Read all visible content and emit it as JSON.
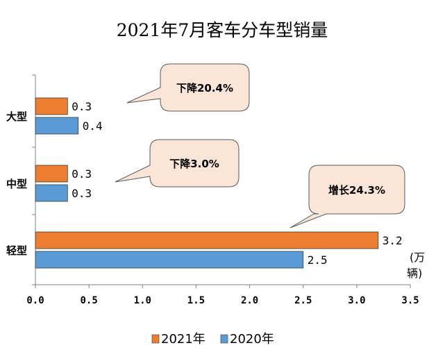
{
  "chart_data": {
    "type": "bar",
    "orientation": "horizontal",
    "title": "2021年7月客车分车型销量",
    "categories": [
      "大型",
      "中型",
      "轻型"
    ],
    "series": [
      {
        "name": "2021年",
        "color": "#ED7D31",
        "values": [
          0.3,
          0.3,
          3.2
        ]
      },
      {
        "name": "2020年",
        "color": "#5B9BD5",
        "values": [
          0.4,
          0.3,
          2.5
        ]
      }
    ],
    "xlim": [
      0,
      3.5
    ],
    "xticks": [
      "0.0",
      "0.5",
      "1.0",
      "1.5",
      "2.0",
      "2.5",
      "3.0",
      "3.5"
    ],
    "unit_label": [
      "(万",
      "辆)"
    ],
    "annotations": [
      {
        "category": "大型",
        "text": "下降20.4%"
      },
      {
        "category": "中型",
        "text": "下降3.0%"
      },
      {
        "category": "轻型",
        "text": "增长24.3%"
      }
    ],
    "grid": false,
    "legend": "bottom",
    "callout_fill": "#FBE5D6"
  }
}
